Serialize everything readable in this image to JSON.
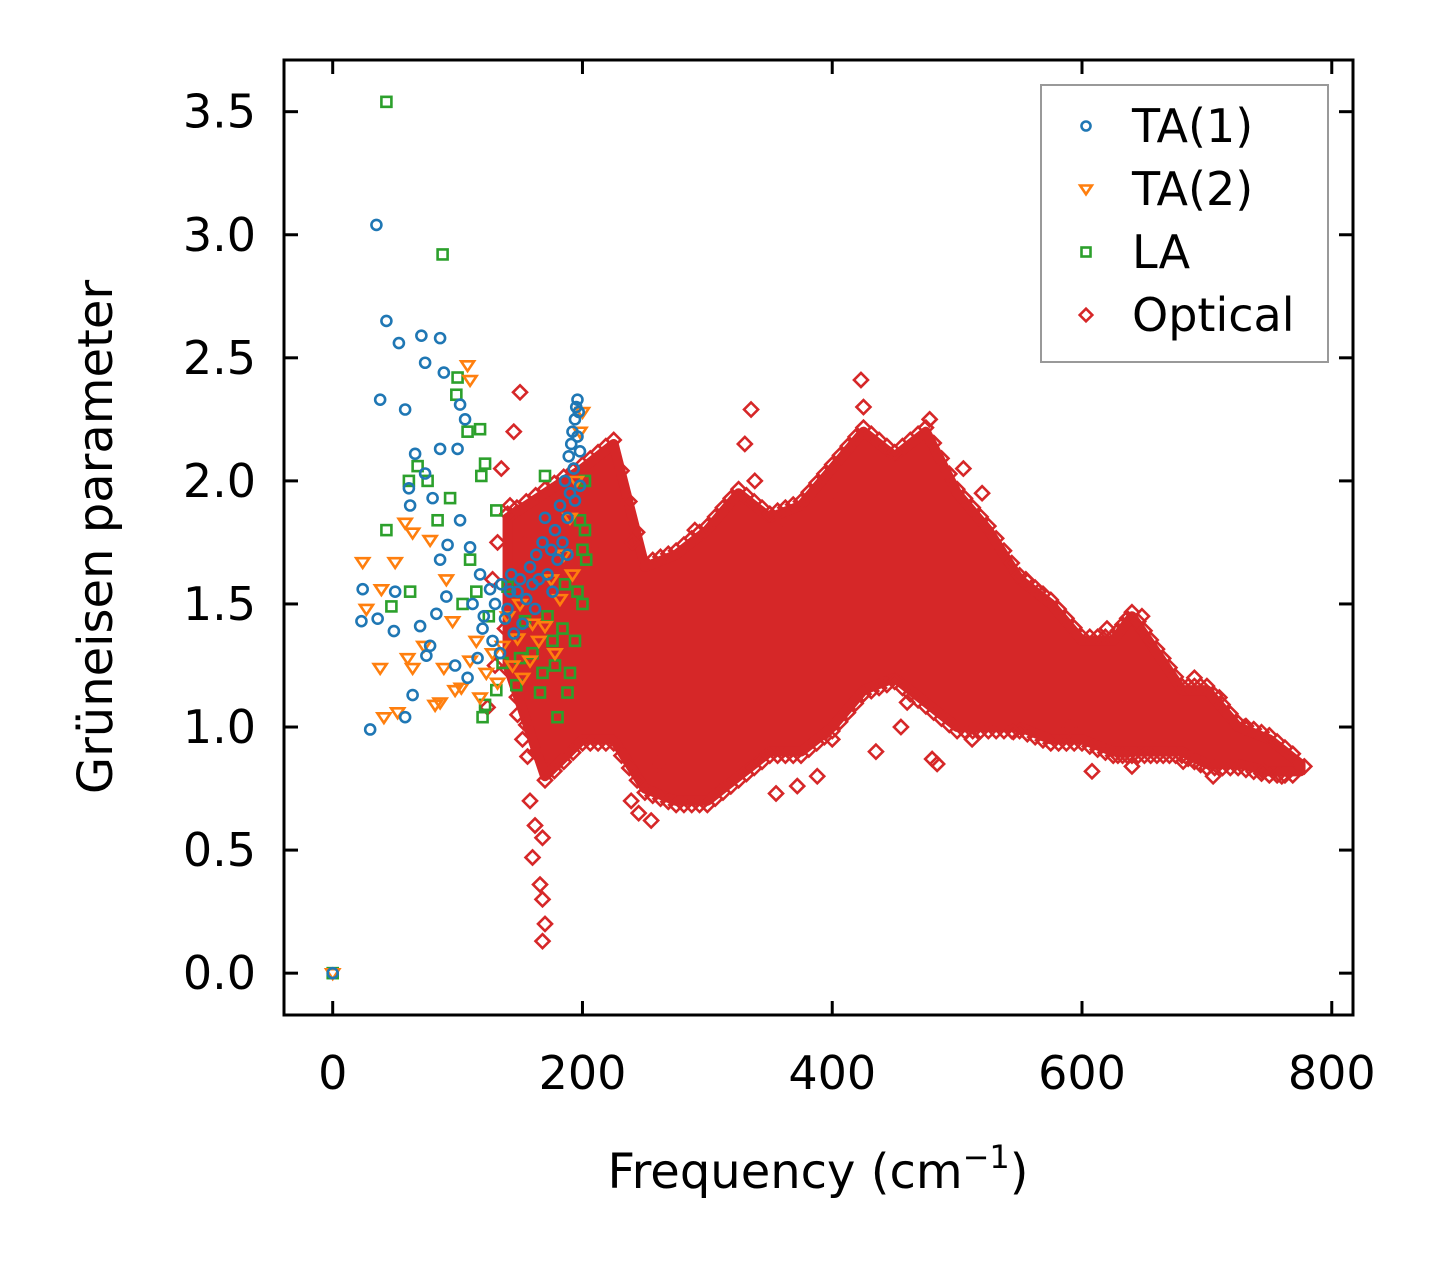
{
  "chart_data": {
    "type": "scatter",
    "title": "",
    "xlabel": {
      "main": "Frequency (cm",
      "sup": "−1",
      "end": ")"
    },
    "ylabel": "Grüneisen parameter",
    "xlim": [
      -39,
      817
    ],
    "ylim": [
      -0.17,
      3.71
    ],
    "xticks": [
      0,
      200,
      400,
      600,
      800
    ],
    "xtick_labels": [
      "0",
      "200",
      "400",
      "600",
      "800"
    ],
    "yticks": [
      0,
      0.5,
      1.0,
      1.5,
      2.0,
      2.5,
      3.0,
      3.5
    ],
    "ytick_labels": [
      "0.0",
      "0.5",
      "1.0",
      "1.5",
      "2.0",
      "2.5",
      "3.0",
      "3.5"
    ],
    "grid": false,
    "legend_position": "top-right",
    "series": [
      {
        "name": "TA(1)",
        "marker": "circle",
        "color": "#1f77b4",
        "points": [
          [
            0,
            0
          ],
          [
            35,
            3.04
          ],
          [
            43,
            2.65
          ],
          [
            53,
            2.56
          ],
          [
            71,
            2.59
          ],
          [
            86,
            2.58
          ],
          [
            74,
            2.48
          ],
          [
            89,
            2.44
          ],
          [
            38,
            2.33
          ],
          [
            58,
            2.29
          ],
          [
            66,
            2.11
          ],
          [
            86,
            2.13
          ],
          [
            100,
            2.13
          ],
          [
            74,
            2.03
          ],
          [
            80,
            1.93
          ],
          [
            61,
            1.97
          ],
          [
            62,
            1.9
          ],
          [
            24,
            1.56
          ],
          [
            50,
            1.55
          ],
          [
            23,
            1.43
          ],
          [
            36,
            1.44
          ],
          [
            49,
            1.39
          ],
          [
            30,
            0.99
          ],
          [
            58,
            1.04
          ],
          [
            64,
            1.13
          ],
          [
            75,
            1.29
          ],
          [
            78,
            1.33
          ],
          [
            70,
            1.41
          ],
          [
            83,
            1.46
          ],
          [
            91,
            1.53
          ],
          [
            86,
            1.68
          ],
          [
            92,
            1.74
          ],
          [
            102,
            1.84
          ],
          [
            102,
            2.31
          ],
          [
            106,
            2.25
          ],
          [
            110,
            1.73
          ],
          [
            112,
            1.5
          ],
          [
            118,
            1.62
          ],
          [
            121,
            1.45
          ],
          [
            126,
            1.56
          ],
          [
            130,
            1.5
          ],
          [
            135,
            1.58
          ],
          [
            140,
            1.48
          ],
          [
            143,
            1.62
          ],
          [
            148,
            1.55
          ],
          [
            150,
            1.6
          ],
          [
            155,
            1.52
          ],
          [
            158,
            1.65
          ],
          [
            160,
            1.58
          ],
          [
            163,
            1.7
          ],
          [
            165,
            1.6
          ],
          [
            168,
            1.75
          ],
          [
            170,
            1.85
          ],
          [
            172,
            1.62
          ],
          [
            175,
            1.72
          ],
          [
            178,
            1.8
          ],
          [
            180,
            1.68
          ],
          [
            182,
            1.9
          ],
          [
            184,
            1.75
          ],
          [
            186,
            2.0
          ],
          [
            188,
            1.85
          ],
          [
            189,
            2.1
          ],
          [
            190,
            1.95
          ],
          [
            191,
            2.15
          ],
          [
            192,
            2.2
          ],
          [
            193,
            2.05
          ],
          [
            194,
            2.25
          ],
          [
            195,
            2.3
          ],
          [
            196,
            2.33
          ],
          [
            196,
            2.18
          ],
          [
            197,
            2.28
          ],
          [
            198,
            1.98
          ],
          [
            198,
            2.12
          ],
          [
            194,
            1.92
          ],
          [
            188,
            1.7
          ],
          [
            176,
            1.55
          ],
          [
            162,
            1.48
          ],
          [
            152,
            1.42
          ],
          [
            145,
            1.38
          ],
          [
            138,
            1.44
          ],
          [
            128,
            1.35
          ],
          [
            116,
            1.28
          ],
          [
            108,
            1.2
          ],
          [
            98,
            1.25
          ],
          [
            120,
            1.4
          ],
          [
            134,
            1.3
          ],
          [
            142,
            1.55
          ]
        ]
      },
      {
        "name": "TA(2)",
        "marker": "triangle-down",
        "color": "#ff7f0e",
        "points": [
          [
            0,
            0
          ],
          [
            24,
            1.67
          ],
          [
            27,
            1.48
          ],
          [
            39,
            1.56
          ],
          [
            50,
            1.67
          ],
          [
            58,
            1.83
          ],
          [
            64,
            1.79
          ],
          [
            38,
            1.24
          ],
          [
            41,
            1.04
          ],
          [
            52,
            1.06
          ],
          [
            60,
            1.28
          ],
          [
            64,
            1.24
          ],
          [
            73,
            1.33
          ],
          [
            82,
            1.09
          ],
          [
            89,
            1.24
          ],
          [
            78,
            1.76
          ],
          [
            91,
            1.6
          ],
          [
            96,
            1.43
          ],
          [
            103,
            1.16
          ],
          [
            110,
            1.27
          ],
          [
            123,
            1.22
          ],
          [
            136,
            1.33
          ],
          [
            144,
            1.25
          ],
          [
            158,
            1.27
          ],
          [
            170,
            1.41
          ],
          [
            182,
            1.52
          ],
          [
            110,
            2.41
          ],
          [
            108,
            2.47
          ],
          [
            115,
            1.35
          ],
          [
            128,
            1.3
          ],
          [
            140,
            1.45
          ],
          [
            150,
            1.5
          ],
          [
            165,
            1.35
          ],
          [
            175,
            1.6
          ],
          [
            185,
            1.7
          ],
          [
            190,
            1.85
          ],
          [
            195,
            2.0
          ],
          [
            198,
            2.2
          ],
          [
            200,
            2.28
          ],
          [
            192,
            1.62
          ],
          [
            178,
            1.3
          ],
          [
            152,
            1.2
          ],
          [
            132,
            1.18
          ],
          [
            118,
            1.12
          ],
          [
            98,
            1.15
          ],
          [
            86,
            1.1
          ],
          [
            160,
            1.42
          ],
          [
            148,
            1.36
          ]
        ]
      },
      {
        "name": "LA",
        "marker": "square",
        "color": "#2ca02c",
        "points": [
          [
            0,
            0
          ],
          [
            43,
            3.54
          ],
          [
            88,
            2.92
          ],
          [
            100,
            2.42
          ],
          [
            99,
            2.35
          ],
          [
            43,
            1.8
          ],
          [
            61,
            2.0
          ],
          [
            68,
            2.06
          ],
          [
            76,
            2.0
          ],
          [
            84,
            1.84
          ],
          [
            94,
            1.93
          ],
          [
            108,
            2.2
          ],
          [
            118,
            2.21
          ],
          [
            122,
            2.07
          ],
          [
            119,
            2.02
          ],
          [
            47,
            1.49
          ],
          [
            62,
            1.55
          ],
          [
            122,
            1.09
          ],
          [
            120,
            1.04
          ],
          [
            131,
            1.15
          ],
          [
            180,
            1.04
          ],
          [
            188,
            1.14
          ],
          [
            147,
            1.17
          ],
          [
            166,
            1.14
          ],
          [
            178,
            1.25
          ],
          [
            194,
            1.35
          ],
          [
            203,
            1.68
          ],
          [
            198,
            1.84
          ],
          [
            170,
            2.02
          ],
          [
            131,
            1.88
          ],
          [
            110,
            1.68
          ],
          [
            140,
            1.57
          ],
          [
            154,
            1.43
          ],
          [
            186,
            1.58
          ],
          [
            202,
            1.8
          ],
          [
            202,
            2.0
          ],
          [
            160,
            1.3
          ],
          [
            172,
            1.45
          ],
          [
            184,
            1.4
          ],
          [
            196,
            1.55
          ],
          [
            200,
            1.72
          ],
          [
            150,
            1.28
          ],
          [
            136,
            1.26
          ],
          [
            190,
            1.22
          ],
          [
            168,
            1.22
          ],
          [
            200,
            1.5
          ],
          [
            176,
            1.35
          ],
          [
            125,
            1.45
          ],
          [
            115,
            1.55
          ],
          [
            104,
            1.5
          ]
        ]
      },
      {
        "name": "Optical",
        "marker": "diamond",
        "color": "#d62728",
        "band": {
          "x": [
            140,
            170,
            200,
            225,
            250,
            275,
            300,
            325,
            350,
            375,
            400,
            425,
            450,
            475,
            500,
            525,
            550,
            575,
            600,
            625,
            640,
            660,
            680,
            700,
            725,
            750,
            775
          ],
          "ymin": [
            1.25,
            0.8,
            0.95,
            0.95,
            0.75,
            0.7,
            0.7,
            0.8,
            0.9,
            0.9,
            1.0,
            1.15,
            1.2,
            1.1,
            1.0,
            1.0,
            1.0,
            0.95,
            0.95,
            0.9,
            0.9,
            0.9,
            0.9,
            0.85,
            0.85,
            0.82,
            0.82
          ],
          "ymax": [
            1.85,
            1.95,
            2.05,
            2.15,
            1.65,
            1.7,
            1.8,
            1.95,
            1.85,
            1.9,
            2.05,
            2.2,
            2.1,
            2.2,
            1.95,
            1.8,
            1.6,
            1.5,
            1.35,
            1.35,
            1.45,
            1.3,
            1.15,
            1.15,
            1.0,
            0.95,
            0.85
          ]
        },
        "points": [
          [
            168,
            0.13
          ],
          [
            170,
            0.2
          ],
          [
            168,
            0.3
          ],
          [
            166,
            0.36
          ],
          [
            160,
            0.47
          ],
          [
            168,
            0.55
          ],
          [
            162,
            0.6
          ],
          [
            158,
            0.7
          ],
          [
            172,
            0.82
          ],
          [
            239,
            0.7
          ],
          [
            245,
            0.65
          ],
          [
            255,
            0.62
          ],
          [
            335,
            2.29
          ],
          [
            330,
            2.15
          ],
          [
            423,
            2.41
          ],
          [
            425,
            2.3
          ],
          [
            478,
            2.25
          ],
          [
            435,
            0.9
          ],
          [
            480,
            0.87
          ],
          [
            484,
            0.85
          ],
          [
            372,
            0.76
          ],
          [
            388,
            0.8
          ],
          [
            260,
            0.85
          ],
          [
            150,
            2.36
          ],
          [
            145,
            2.2
          ],
          [
            124,
            1.08
          ],
          [
            130,
            1.25
          ],
          [
            512,
            0.95
          ],
          [
            545,
            0.98
          ],
          [
            590,
            1.0
          ],
          [
            608,
            0.82
          ],
          [
            640,
            0.84
          ],
          [
            681,
            0.86
          ],
          [
            705,
            0.8
          ],
          [
            745,
            0.82
          ],
          [
            760,
            0.8
          ],
          [
            778,
            0.84
          ],
          [
            135,
            2.05
          ],
          [
            142,
            1.9
          ],
          [
            155,
            1.75
          ],
          [
            210,
            1.75
          ],
          [
            240,
            1.75
          ],
          [
            290,
            1.8
          ],
          [
            320,
            1.9
          ],
          [
            338,
            2.0
          ],
          [
            360,
            1.85
          ],
          [
            398,
            1.95
          ],
          [
            505,
            2.05
          ],
          [
            520,
            1.95
          ],
          [
            555,
            1.6
          ],
          [
            565,
            1.55
          ],
          [
            620,
            1.4
          ],
          [
            648,
            1.45
          ],
          [
            690,
            1.2
          ],
          [
            710,
            1.12
          ],
          [
            730,
            1.0
          ],
          [
            310,
            0.75
          ],
          [
            355,
            0.73
          ],
          [
            400,
            0.95
          ],
          [
            455,
            1.0
          ],
          [
            460,
            1.1
          ],
          [
            128,
            1.6
          ],
          [
            132,
            1.75
          ],
          [
            138,
            1.4
          ],
          [
            148,
            1.05
          ],
          [
            152,
            0.95
          ],
          [
            156,
            0.88
          ]
        ]
      }
    ]
  }
}
